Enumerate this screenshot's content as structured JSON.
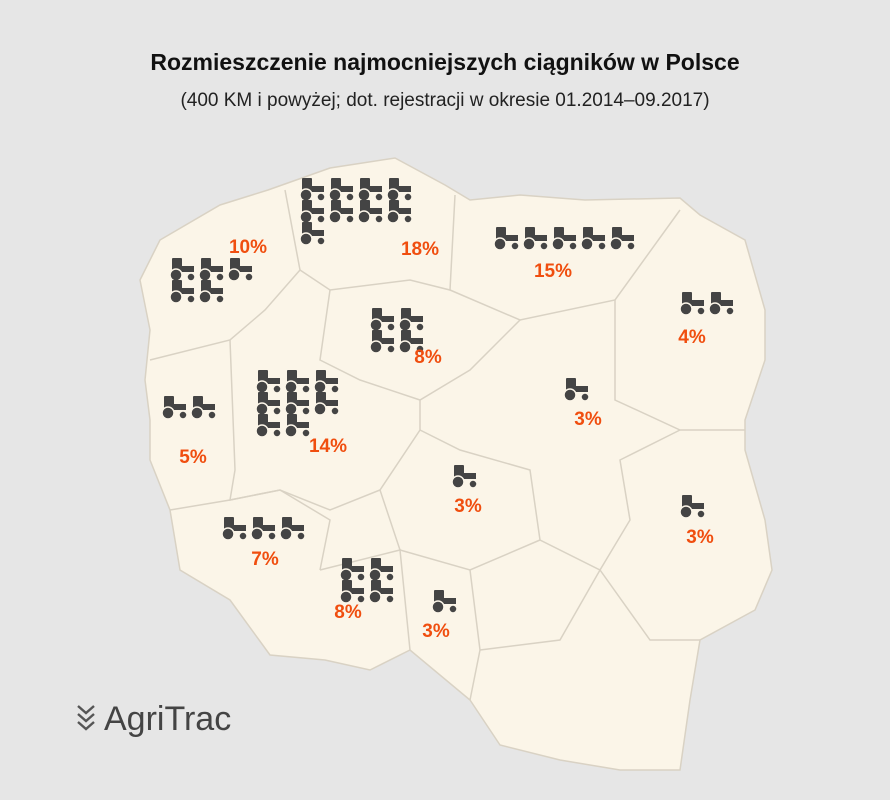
{
  "header": {
    "title": "Rozmieszczenie najmocniejszych ciągników w Polsce",
    "subtitle": "(400 KM i powyżej; dot. rejestracji w okresie 01.2014–09.2017)"
  },
  "regions": [
    {
      "label": "10%",
      "icons": 5
    },
    {
      "label": "18%",
      "icons": 9
    },
    {
      "label": "15%",
      "icons": 5
    },
    {
      "label": "4%",
      "icons": 2
    },
    {
      "label": "8%",
      "icons": 4
    },
    {
      "label": "14%",
      "icons": 8
    },
    {
      "label": "5%",
      "icons": 2
    },
    {
      "label": "3%",
      "icons": 1
    },
    {
      "label": "3%",
      "icons": 1
    },
    {
      "label": "3%",
      "icons": 1
    },
    {
      "label": "7%",
      "icons": 3
    },
    {
      "label": "8%",
      "icons": 4
    },
    {
      "label": "3%",
      "icons": 1
    }
  ],
  "footer": {
    "logo": "AgriTrac"
  }
}
